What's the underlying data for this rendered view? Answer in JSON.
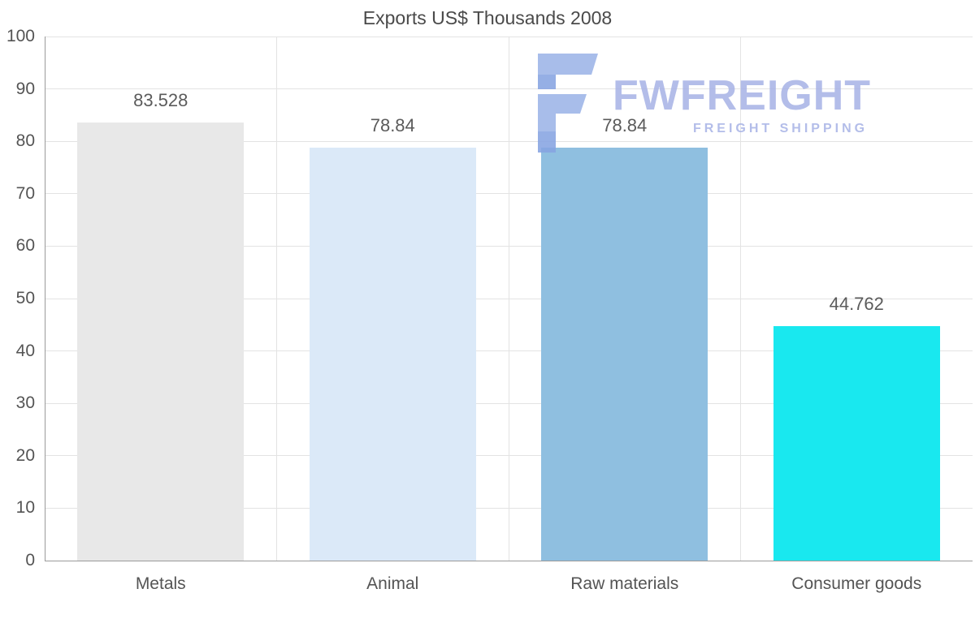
{
  "chart_data": {
    "type": "bar",
    "title": "Exports US$ Thousands 2008",
    "categories": [
      "Metals",
      "Animal",
      "Raw materials",
      "Consumer goods"
    ],
    "values": [
      83.528,
      78.84,
      78.84,
      44.762
    ],
    "value_labels": [
      "83.528",
      "78.84",
      "78.84",
      "44.762"
    ],
    "bar_colors": [
      "#e8e8e8",
      "#dbe9f8",
      "#8fbfe0",
      "#19e8ef"
    ],
    "xlabel": "",
    "ylabel": "",
    "ylim": [
      0,
      100
    ],
    "ytick_step": 10,
    "grid": true,
    "legend": false
  },
  "watermark": {
    "brand": "FWFREIGHT",
    "tagline": "FREIGHT SHIPPING",
    "color": "#a9b4e6",
    "glyph_color": "#9db4e8",
    "glyph_accent_color": "#87a4e2"
  }
}
